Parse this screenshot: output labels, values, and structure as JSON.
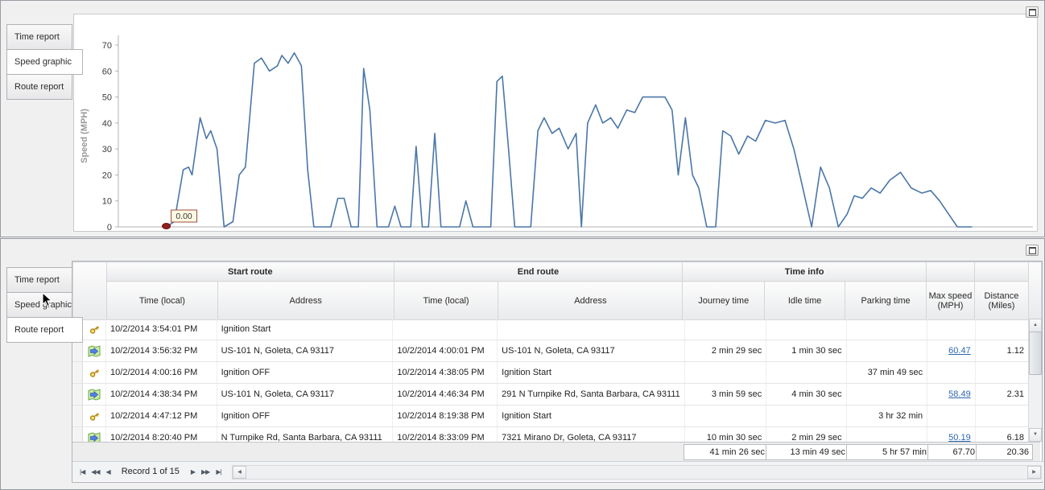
{
  "colors": {
    "chart_line": "#4a76a8",
    "chart_marker": "#8e1f1f",
    "link": "#2d66b0"
  },
  "top_panel": {
    "tabs": [
      {
        "label": "Time report",
        "active": false
      },
      {
        "label": "Speed graphic",
        "active": true
      },
      {
        "label": "Route report",
        "active": false
      }
    ]
  },
  "bottom_panel": {
    "tabs": [
      {
        "label": "Time report",
        "active": false
      },
      {
        "label": "Speed graphic",
        "active": false
      },
      {
        "label": "Route report",
        "active": true
      }
    ]
  },
  "chart_data": {
    "type": "line",
    "title": "",
    "xlabel": "",
    "ylabel": "Speed (MPH)",
    "ylim": [
      0,
      70
    ],
    "yticks": [
      0,
      10,
      20,
      30,
      40,
      50,
      60,
      70
    ],
    "grid": false,
    "legend": false,
    "x_range_pct": [
      0,
      100
    ],
    "points": [
      [
        5.4,
        0
      ],
      [
        6.3,
        2
      ],
      [
        7.3,
        22
      ],
      [
        7.9,
        23
      ],
      [
        8.3,
        20
      ],
      [
        9.2,
        42
      ],
      [
        9.9,
        34
      ],
      [
        10.4,
        37
      ],
      [
        11.1,
        30
      ],
      [
        11.9,
        0
      ],
      [
        12.9,
        2
      ],
      [
        13.6,
        20
      ],
      [
        14.3,
        23
      ],
      [
        15.3,
        63
      ],
      [
        16.1,
        65
      ],
      [
        17.0,
        60
      ],
      [
        17.9,
        62
      ],
      [
        18.4,
        66
      ],
      [
        19.1,
        63
      ],
      [
        19.8,
        67
      ],
      [
        20.6,
        62
      ],
      [
        21.3,
        22
      ],
      [
        22.0,
        0
      ],
      [
        23.9,
        0
      ],
      [
        24.7,
        11
      ],
      [
        25.4,
        11
      ],
      [
        26.2,
        0
      ],
      [
        27.0,
        0
      ],
      [
        27.6,
        61
      ],
      [
        28.3,
        45
      ],
      [
        29.1,
        0
      ],
      [
        30.4,
        0
      ],
      [
        31.1,
        8
      ],
      [
        31.8,
        0
      ],
      [
        32.9,
        0
      ],
      [
        33.5,
        31
      ],
      [
        34.2,
        0
      ],
      [
        34.9,
        0
      ],
      [
        35.6,
        36
      ],
      [
        36.3,
        0
      ],
      [
        38.4,
        0
      ],
      [
        39.1,
        10
      ],
      [
        39.9,
        0
      ],
      [
        41.9,
        0
      ],
      [
        42.6,
        56
      ],
      [
        43.2,
        58
      ],
      [
        43.9,
        30
      ],
      [
        44.6,
        0
      ],
      [
        46.4,
        0
      ],
      [
        47.2,
        37
      ],
      [
        47.9,
        42
      ],
      [
        48.8,
        36
      ],
      [
        49.6,
        38
      ],
      [
        50.6,
        30
      ],
      [
        51.5,
        36
      ],
      [
        52.1,
        0
      ],
      [
        52.8,
        40
      ],
      [
        53.7,
        47
      ],
      [
        54.5,
        40
      ],
      [
        55.4,
        42
      ],
      [
        56.2,
        38
      ],
      [
        57.2,
        45
      ],
      [
        58.1,
        44
      ],
      [
        59.0,
        50
      ],
      [
        60.3,
        50
      ],
      [
        61.5,
        50
      ],
      [
        62.3,
        45
      ],
      [
        63.0,
        20
      ],
      [
        63.8,
        42
      ],
      [
        64.6,
        20
      ],
      [
        65.3,
        15
      ],
      [
        66.2,
        0
      ],
      [
        67.2,
        0
      ],
      [
        68.0,
        37
      ],
      [
        68.9,
        35
      ],
      [
        69.8,
        28
      ],
      [
        70.8,
        35
      ],
      [
        71.7,
        33
      ],
      [
        72.8,
        41
      ],
      [
        73.9,
        40
      ],
      [
        75.0,
        41
      ],
      [
        76.0,
        30
      ],
      [
        77.0,
        15
      ],
      [
        78.0,
        0
      ],
      [
        79.0,
        23
      ],
      [
        80.0,
        15
      ],
      [
        81.0,
        0
      ],
      [
        82.0,
        5
      ],
      [
        82.8,
        12
      ],
      [
        83.7,
        11
      ],
      [
        84.7,
        15
      ],
      [
        85.7,
        13
      ],
      [
        86.8,
        18
      ],
      [
        88.0,
        21
      ],
      [
        89.2,
        15
      ],
      [
        90.4,
        13
      ],
      [
        91.4,
        14
      ],
      [
        92.4,
        10
      ],
      [
        93.4,
        5
      ],
      [
        94.4,
        0
      ],
      [
        96.0,
        0
      ]
    ],
    "marker": {
      "x": 5.4,
      "value": 0,
      "label": "0.00"
    }
  },
  "table": {
    "header": {
      "groups": {
        "start_route": "Start route",
        "end_route": "End route",
        "time_info": "Time info"
      },
      "columns": {
        "start_time": "Time (local)",
        "start_address": "Address",
        "end_time": "Time (local)",
        "end_address": "Address",
        "journey_time": "Journey time",
        "idle_time": "Idle time",
        "parking_time": "Parking time",
        "max_speed": "Max speed (MPH)",
        "distance": "Distance (Miles)"
      }
    },
    "rows": [
      {
        "icon": "key-icon",
        "start_time": "10/2/2014 3:54:01 PM",
        "start_address": "Ignition Start",
        "end_time": "",
        "end_address": "",
        "journey_time": "",
        "idle_time": "",
        "parking_time": "",
        "max_speed": "",
        "max_speed_link": false,
        "distance": ""
      },
      {
        "icon": "route-icon",
        "start_time": "10/2/2014 3:56:32 PM",
        "start_address": "US-101 N, Goleta, CA 93117",
        "end_time": "10/2/2014 4:00:01 PM",
        "end_address": "US-101 N, Goleta, CA 93117",
        "journey_time": "2 min 29 sec",
        "idle_time": "1 min 30 sec",
        "parking_time": "",
        "max_speed": "60.47",
        "max_speed_link": true,
        "distance": "1.12"
      },
      {
        "icon": "key-icon",
        "start_time": "10/2/2014 4:00:16 PM",
        "start_address": "Ignition OFF",
        "end_time": "10/2/2014 4:38:05 PM",
        "end_address": "Ignition Start",
        "journey_time": "",
        "idle_time": "",
        "parking_time": "37 min 49 sec",
        "max_speed": "",
        "max_speed_link": false,
        "distance": ""
      },
      {
        "icon": "route-icon",
        "start_time": "10/2/2014 4:38:34 PM",
        "start_address": "US-101 N, Goleta, CA 93117",
        "end_time": "10/2/2014 4:46:34 PM",
        "end_address": "291 N Turnpike Rd, Santa Barbara, CA 93111",
        "journey_time": "3 min 59 sec",
        "idle_time": "4 min 30 sec",
        "parking_time": "",
        "max_speed": "58.49",
        "max_speed_link": true,
        "distance": "2.31"
      },
      {
        "icon": "key-icon",
        "start_time": "10/2/2014 4:47:12 PM",
        "start_address": "Ignition OFF",
        "end_time": "10/2/2014 8:19:38 PM",
        "end_address": "Ignition Start",
        "journey_time": "",
        "idle_time": "",
        "parking_time": "3 hr 32 min",
        "max_speed": "",
        "max_speed_link": false,
        "distance": ""
      },
      {
        "icon": "route-icon",
        "start_time": "10/2/2014 8:20:40 PM",
        "start_address": "N Turnpike Rd, Santa Barbara, CA 93111",
        "end_time": "10/2/2014 8:33:09 PM",
        "end_address": "7321 Mirano Dr, Goleta, CA 93117",
        "journey_time": "10 min 30 sec",
        "idle_time": "2 min 29 sec",
        "parking_time": "",
        "max_speed": "50.19",
        "max_speed_link": true,
        "distance": "6.18"
      }
    ],
    "summary": {
      "journey_time": "41 min 26 sec",
      "idle_time": "13 min 49 sec",
      "parking_time": "5 hr 57 min",
      "max_speed": "67.70",
      "distance": "20.36"
    },
    "navigator": {
      "record_label": "Record 1 of 15",
      "buttons_left": [
        {
          "name": "first",
          "glyph": "|◀"
        },
        {
          "name": "prev-page",
          "glyph": "◀◀"
        },
        {
          "name": "prev",
          "glyph": "◀"
        }
      ],
      "buttons_right": [
        {
          "name": "next",
          "glyph": "▶"
        },
        {
          "name": "next-page",
          "glyph": "▶▶"
        },
        {
          "name": "last",
          "glyph": "▶|"
        }
      ]
    },
    "scrollbar": {
      "up_glyph": "▲",
      "down_glyph": "▼",
      "left_glyph": "◀",
      "right_glyph": "▶"
    }
  }
}
